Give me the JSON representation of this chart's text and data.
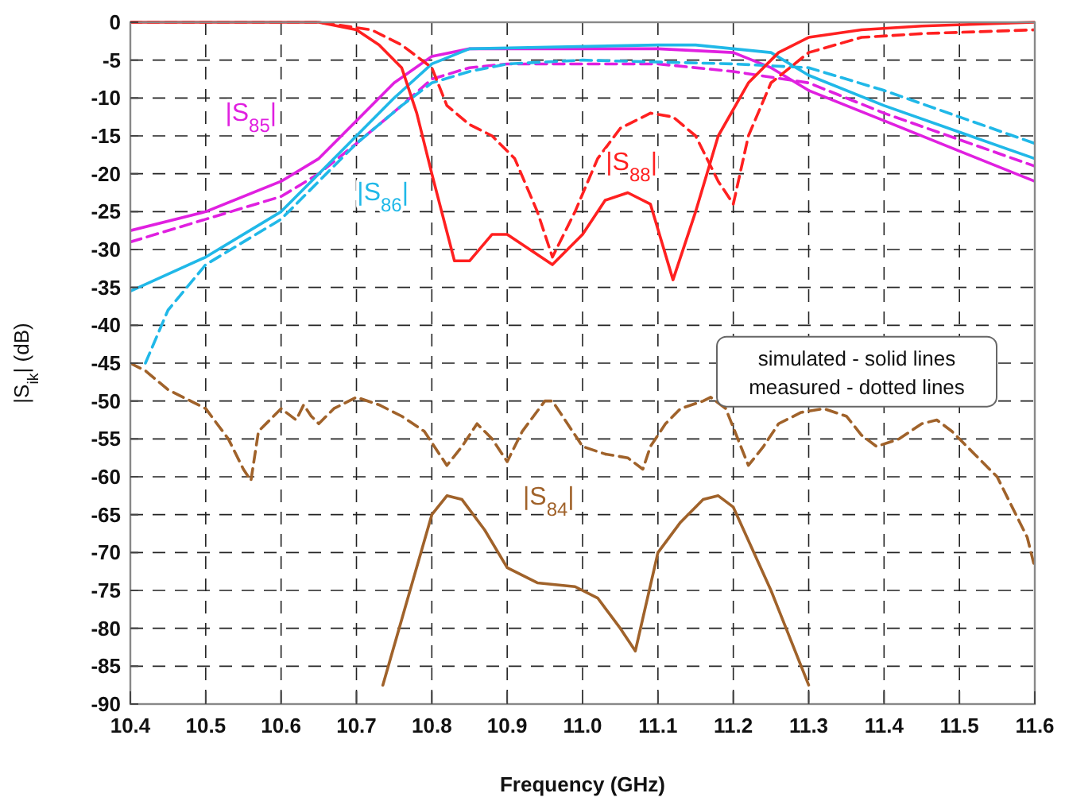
{
  "chart_data": {
    "type": "line",
    "xlabel": "Frequency (GHz)",
    "ylabel": "|S$_{ik}$| (dB)",
    "xlim": [
      10.4,
      11.6
    ],
    "xticks": [
      10.4,
      10.5,
      10.6,
      10.7,
      10.8,
      10.9,
      {
        "value": 11,
        "label": "11.0"
      },
      11.1,
      11.2,
      11.3,
      11.4,
      11.5,
      11.6
    ],
    "ylim": [
      -90,
      0
    ],
    "yticks": [
      0,
      -5,
      -10,
      -15,
      -20,
      -25,
      -30,
      -35,
      -40,
      -45,
      -50,
      -55,
      -60,
      -65,
      -70,
      -75,
      -80,
      -85,
      -90
    ],
    "grid": true,
    "marker": "none",
    "annotations": [
      "simulated - solid lines",
      "measured - dotted lines"
    ],
    "series": [
      {
        "name": "|S$_{85}$|",
        "color": "#e020e0",
        "line_style": "solid",
        "x": [
          10.4,
          10.5,
          10.6,
          10.65,
          10.7,
          10.75,
          10.8,
          10.85,
          11.1,
          11.2,
          11.25,
          11.3,
          11.4,
          11.5,
          11.6
        ],
        "values": [
          -27.5,
          -25,
          -21,
          -18,
          -13,
          -8,
          -4.5,
          -3.5,
          -3.5,
          -4,
          -6,
          -9,
          -13,
          -17,
          -21
        ]
      },
      {
        "color": "#e020e0",
        "line_style": "dashed",
        "x": [
          10.4,
          10.5,
          10.6,
          10.65,
          10.7,
          10.76,
          10.8,
          10.85,
          10.9,
          11.1,
          11.2,
          11.3,
          11.4,
          11.5,
          11.6
        ],
        "values": [
          -29,
          -26,
          -23,
          -20,
          -16,
          -11,
          -7.5,
          -6,
          -5.5,
          -5.5,
          -6.5,
          -8,
          -12,
          -15.5,
          -19
        ]
      },
      {
        "name": "|S$_{86}$|",
        "color": "#20b8e8",
        "line_style": "solid",
        "x": [
          10.4,
          10.5,
          10.6,
          10.65,
          10.7,
          10.75,
          10.8,
          10.85,
          11.1,
          11.15,
          11.25,
          11.3,
          11.4,
          11.5,
          11.6
        ],
        "values": [
          -35.5,
          -31,
          -25,
          -20,
          -15,
          -10,
          -5.5,
          -3.5,
          -3,
          -3,
          -4,
          -7,
          -11,
          -14.5,
          -18
        ]
      },
      {
        "color": "#20b8e8",
        "line_style": "dashed",
        "x": [
          10.42,
          10.45,
          10.5,
          10.6,
          10.65,
          10.7,
          10.76,
          10.8,
          10.85,
          10.9,
          11.0,
          11.2,
          11.3,
          11.4,
          11.5,
          11.6
        ],
        "values": [
          -45,
          -38,
          -32,
          -26,
          -21,
          -16,
          -11,
          -8,
          -6.5,
          -5.5,
          -5,
          -5.5,
          -6,
          -9,
          -12.5,
          -16
        ]
      },
      {
        "name": "|S$_{88}$|",
        "color": "#ff2020",
        "line_style": "solid",
        "x": [
          10.4,
          10.65,
          10.7,
          10.73,
          10.76,
          10.78,
          10.8,
          10.83,
          10.85,
          10.88,
          10.9,
          10.93,
          10.96,
          11.0,
          11.03,
          11.06,
          11.09,
          11.12,
          11.15,
          11.18,
          11.22,
          11.26,
          11.3,
          11.37,
          11.45,
          11.6
        ],
        "values": [
          0,
          0,
          -1,
          -3,
          -6,
          -12,
          -20,
          -31.5,
          -31.5,
          -28,
          -28,
          -30,
          -32,
          -28,
          -23.5,
          -22.5,
          -24,
          -34,
          -25,
          -15,
          -8,
          -4,
          -2,
          -1,
          -0.5,
          0
        ]
      },
      {
        "color": "#ff2020",
        "line_style": "dashed",
        "x": [
          10.4,
          10.65,
          10.72,
          10.76,
          10.8,
          10.82,
          10.85,
          10.88,
          10.91,
          10.94,
          10.96,
          10.99,
          11.02,
          11.05,
          11.09,
          11.12,
          11.15,
          11.18,
          11.2,
          11.22,
          11.25,
          11.3,
          11.37,
          11.45,
          11.6
        ],
        "values": [
          0,
          0,
          -1,
          -3,
          -6,
          -11,
          -13.5,
          -15,
          -18,
          -25,
          -31,
          -25,
          -18,
          -14,
          -12,
          -12.5,
          -15,
          -21,
          -24,
          -15,
          -8,
          -4,
          -2,
          -1.5,
          -1
        ]
      },
      {
        "name": "|S$_{84}$|",
        "color": "#a0622a",
        "line_style": "solid",
        "x": [
          10.735,
          10.8,
          10.82,
          10.84,
          10.87,
          10.9,
          10.94,
          10.99,
          11.02,
          11.05,
          11.07,
          11.1,
          11.13,
          11.16,
          11.18,
          11.2,
          11.25,
          11.3
        ],
        "values": [
          -87.5,
          -65,
          -62.5,
          -63,
          -67,
          -72,
          -74,
          -74.5,
          -76,
          -80,
          -83,
          -70,
          -66,
          -63,
          -62.5,
          -64,
          -75,
          -87.5
        ]
      },
      {
        "color": "#a0622a",
        "line_style": "dashed",
        "x": [
          10.4,
          10.42,
          10.45,
          10.48,
          10.5,
          10.53,
          10.55,
          10.56,
          10.57,
          10.59,
          10.6,
          10.62,
          10.63,
          10.64,
          10.65,
          10.67,
          10.69,
          10.7,
          10.73,
          10.76,
          10.79,
          10.81,
          10.82,
          10.84,
          10.86,
          10.88,
          10.9,
          10.92,
          10.95,
          10.96,
          10.98,
          11.0,
          11.03,
          11.06,
          11.08,
          11.09,
          11.11,
          11.13,
          11.16,
          11.17,
          11.19,
          11.21,
          11.22,
          11.24,
          11.26,
          11.29,
          11.32,
          11.35,
          11.37,
          11.39,
          11.42,
          11.45,
          11.47,
          11.49,
          11.52,
          11.55,
          11.57,
          11.59,
          11.6
        ],
        "values": [
          -45,
          -46,
          -48.5,
          -50,
          -51,
          -55,
          -59,
          -60.5,
          -54,
          -52,
          -51,
          -52.5,
          -50.5,
          -52,
          -53,
          -51,
          -50,
          -49.5,
          -50.5,
          -52,
          -54,
          -57,
          -58.5,
          -56,
          -53,
          -55,
          -58,
          -54,
          -50,
          -50,
          -53,
          -56,
          -57,
          -57.5,
          -59,
          -56,
          -53,
          -51,
          -50,
          -49.5,
          -51,
          -56,
          -58.5,
          -56,
          -53,
          -51.5,
          -51,
          -52,
          -54.5,
          -56,
          -55,
          -53,
          -52.5,
          -54,
          -57,
          -60,
          -64,
          -68,
          -72
        ]
      }
    ]
  }
}
